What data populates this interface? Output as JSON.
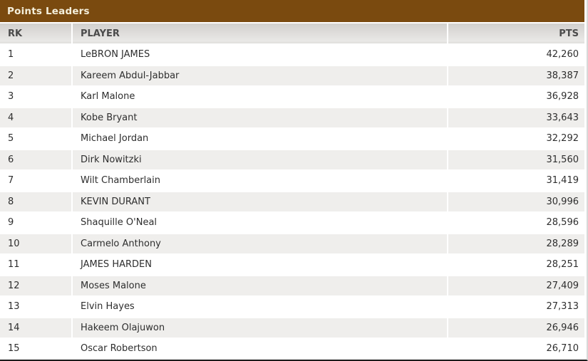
{
  "widget": {
    "title": "Points Leaders"
  },
  "chart_data": {
    "type": "table",
    "title": "Points Leaders",
    "columns": [
      "RK",
      "PLAYER",
      "PTS"
    ],
    "rows": [
      [
        "1",
        "LeBRON JAMES",
        "42,260"
      ],
      [
        "2",
        "Kareem Abdul-Jabbar",
        "38,387"
      ],
      [
        "3",
        "Karl Malone",
        "36,928"
      ],
      [
        "4",
        "Kobe Bryant",
        "33,643"
      ],
      [
        "5",
        "Michael Jordan",
        "32,292"
      ],
      [
        "6",
        "Dirk Nowitzki",
        "31,560"
      ],
      [
        "7",
        "Wilt Chamberlain",
        "31,419"
      ],
      [
        "8",
        "KEVIN DURANT",
        "30,996"
      ],
      [
        "9",
        "Shaquille O'Neal",
        "28,596"
      ],
      [
        "10",
        "Carmelo Anthony",
        "28,289"
      ],
      [
        "11",
        "JAMES HARDEN",
        "28,251"
      ],
      [
        "12",
        "Moses Malone",
        "27,409"
      ],
      [
        "13",
        "Elvin Hayes",
        "27,313"
      ],
      [
        "14",
        "Hakeem Olajuwon",
        "26,946"
      ],
      [
        "15",
        "Oscar Robertson",
        "26,710"
      ]
    ],
    "pts_values": [
      42260,
      38387,
      36928,
      33643,
      32292,
      31560,
      31419,
      30996,
      28596,
      28289,
      28251,
      27409,
      27313,
      26946,
      26710
    ],
    "layout_hints": {
      "row_striping": "alternating white / light gray",
      "pts_alignment": "right",
      "grid": "2px white cell spacing"
    }
  },
  "ui_colors": {
    "title_bar_bg": "#7a4a0f",
    "title_text": "#f4efdb",
    "column_header_gradient_top": "#d2d0cd",
    "column_header_gradient_bottom": "#e9e8e6",
    "column_header_text": "#4b4b4b",
    "row_alt_bg": "#efeeec",
    "row_text": "#2e2e2e",
    "bottom_border": "#1b1b1b"
  }
}
